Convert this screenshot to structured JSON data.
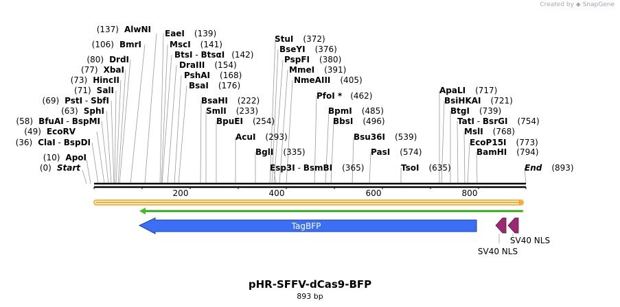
{
  "credit": {
    "prefix": "Created by",
    "brand": "SnapGene"
  },
  "plasmid": {
    "name": "pHR-SFFV-dCas9-BFP",
    "length_label": "893 bp",
    "length": 893
  },
  "ruler": {
    "ticks": [
      "200",
      "400",
      "600",
      "800"
    ]
  },
  "sites": [
    {
      "pos": "(137)",
      "name": "AlwNI"
    },
    {
      "pos": "(106)",
      "name": "BmrI"
    },
    {
      "pos": "(80)",
      "name": "DrdI"
    },
    {
      "pos": "(77)",
      "name": "XbaI"
    },
    {
      "pos": "(73)",
      "name": "HincII"
    },
    {
      "pos": "(71)",
      "name": "SalI"
    },
    {
      "pos": "(69)",
      "name": "PstI",
      "name2": "SbfI"
    },
    {
      "pos": "(63)",
      "name": "SphI"
    },
    {
      "pos": "(58)",
      "name": "BfuAI",
      "name2": "BspMI"
    },
    {
      "pos": "(49)",
      "name": "EcoRV"
    },
    {
      "pos": "(36)",
      "name": "ClaI",
      "name2": "BspDI"
    },
    {
      "pos": "(10)",
      "name": "ApoI"
    },
    {
      "pos": "(0)",
      "name": "Start"
    },
    {
      "pos": "(139)",
      "name": "EaeI"
    },
    {
      "pos": "(141)",
      "name": "MscI"
    },
    {
      "pos": "(142)",
      "name": "BtsI",
      "name2": "BtsαI"
    },
    {
      "pos": "(154)",
      "name": "DraIII"
    },
    {
      "pos": "(168)",
      "name": "PshAI"
    },
    {
      "pos": "(176)",
      "name": "BsaI"
    },
    {
      "pos": "(222)",
      "name": "BsaHI"
    },
    {
      "pos": "(233)",
      "name": "SmlI"
    },
    {
      "pos": "(254)",
      "name": "BpuEI"
    },
    {
      "pos": "(293)",
      "name": "AcuI"
    },
    {
      "pos": "(335)",
      "name": "BglI"
    },
    {
      "pos": "(365)",
      "name": "Esp3I",
      "name2": "BsmBI"
    },
    {
      "pos": "(372)",
      "name": "StuI"
    },
    {
      "pos": "(376)",
      "name": "BseYI"
    },
    {
      "pos": "(380)",
      "name": "PspFI"
    },
    {
      "pos": "(391)",
      "name": "MmeI"
    },
    {
      "pos": "(405)",
      "name": "NmeAIII"
    },
    {
      "pos": "(462)",
      "name": "PfoI *"
    },
    {
      "pos": "(485)",
      "name": "BpmI"
    },
    {
      "pos": "(496)",
      "name": "BbsI"
    },
    {
      "pos": "(539)",
      "name": "Bsu36I"
    },
    {
      "pos": "(574)",
      "name": "PasI"
    },
    {
      "pos": "(635)",
      "name": "TsoI"
    },
    {
      "pos": "(717)",
      "name": "ApaLI"
    },
    {
      "pos": "(721)",
      "name": "BsiHKAI"
    },
    {
      "pos": "(739)",
      "name": "BtgI"
    },
    {
      "pos": "(754)",
      "name": "TatI",
      "name2": "BsrGI"
    },
    {
      "pos": "(768)",
      "name": "MslI"
    },
    {
      "pos": "(773)",
      "name": "EcoP15I"
    },
    {
      "pos": "(794)",
      "name": "BamHI"
    },
    {
      "pos": "(893)",
      "name": "End"
    }
  ],
  "features": {
    "tagbfp": "TagBFP",
    "sv40_a": "SV40 NLS",
    "sv40_b": "SV40 NLS"
  },
  "colors": {
    "orange_bar": "#f5a623",
    "green_arrow": "#3ec11e",
    "tagbfp": "#3b6ff5",
    "sv40": "#9b2a6e"
  }
}
